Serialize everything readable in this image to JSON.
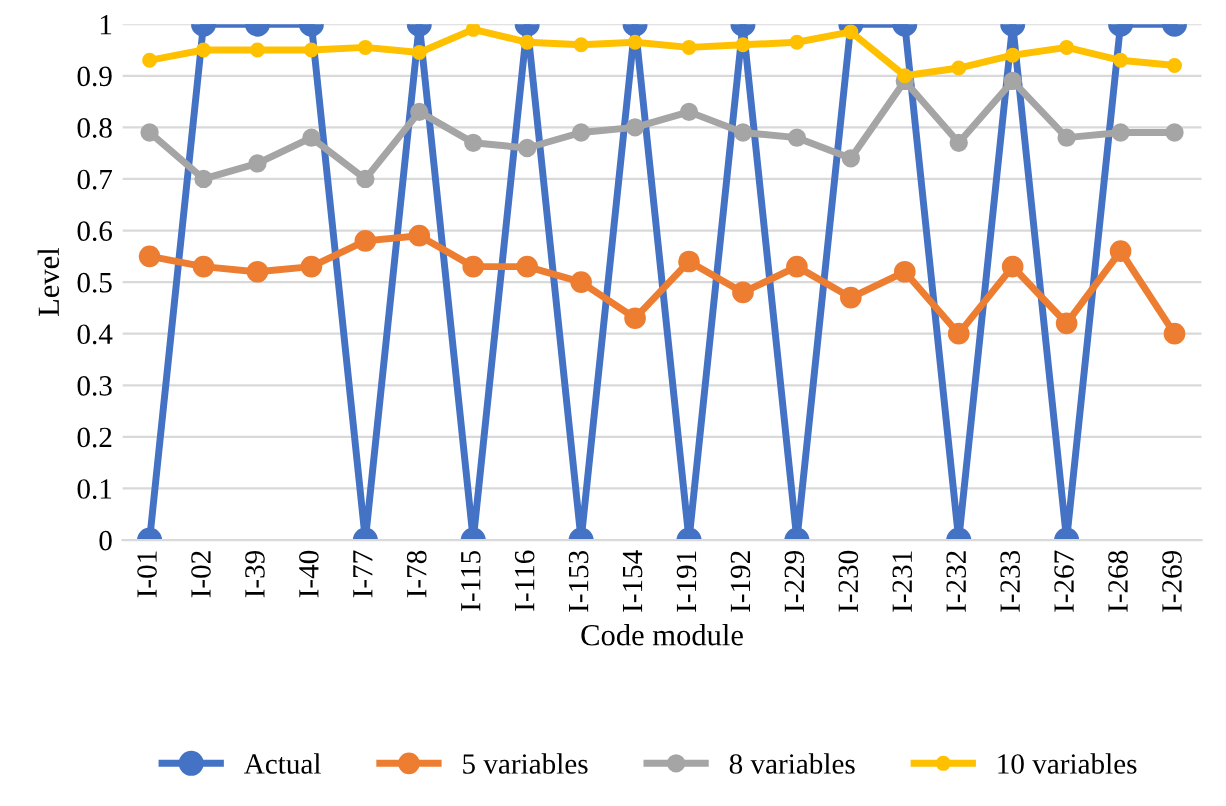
{
  "chart_data": {
    "type": "line",
    "xlabel": "Code module",
    "ylabel": "Level",
    "categories": [
      "I-01",
      "I-02",
      "I-39",
      "I-40",
      "I-77",
      "I-78",
      "I-115",
      "I-116",
      "I-153",
      "I-154",
      "I-191",
      "I-192",
      "I-229",
      "I-230",
      "I-231",
      "I-232",
      "I-233",
      "I-267",
      "I-268",
      "I-269"
    ],
    "series": [
      {
        "name": "Actual",
        "color": "#4472c4",
        "values": [
          0,
          1,
          1,
          1,
          0,
          1,
          0,
          1,
          0,
          1,
          0,
          1,
          0,
          1,
          1,
          0,
          1,
          0,
          1,
          1
        ]
      },
      {
        "name": "5 variables",
        "color": "#ed7d31",
        "values": [
          0.55,
          0.53,
          0.52,
          0.53,
          0.58,
          0.59,
          0.53,
          0.53,
          0.5,
          0.43,
          0.54,
          0.48,
          0.53,
          0.47,
          0.52,
          0.4,
          0.53,
          0.42,
          0.56,
          0.4
        ]
      },
      {
        "name": "8 variables",
        "color": "#a5a5a5",
        "values": [
          0.79,
          0.7,
          0.73,
          0.78,
          0.7,
          0.83,
          0.77,
          0.76,
          0.79,
          0.8,
          0.83,
          0.79,
          0.78,
          0.74,
          0.89,
          0.77,
          0.89,
          0.78,
          0.79,
          0.79
        ]
      },
      {
        "name": "10 variables",
        "color": "#ffc000",
        "values": [
          0.93,
          0.95,
          0.95,
          0.95,
          0.955,
          0.945,
          0.99,
          0.965,
          0.96,
          0.965,
          0.955,
          0.96,
          0.965,
          0.985,
          0.9,
          0.915,
          0.94,
          0.955,
          0.93,
          0.92
        ]
      }
    ],
    "ylim": [
      0,
      1
    ],
    "yticks": [
      0,
      0.1,
      0.2,
      0.3,
      0.4,
      0.5,
      0.6,
      0.7,
      0.8,
      0.9,
      1
    ],
    "grid": "y",
    "legend": "bottom",
    "marker": "circle",
    "line_style": "solid"
  }
}
